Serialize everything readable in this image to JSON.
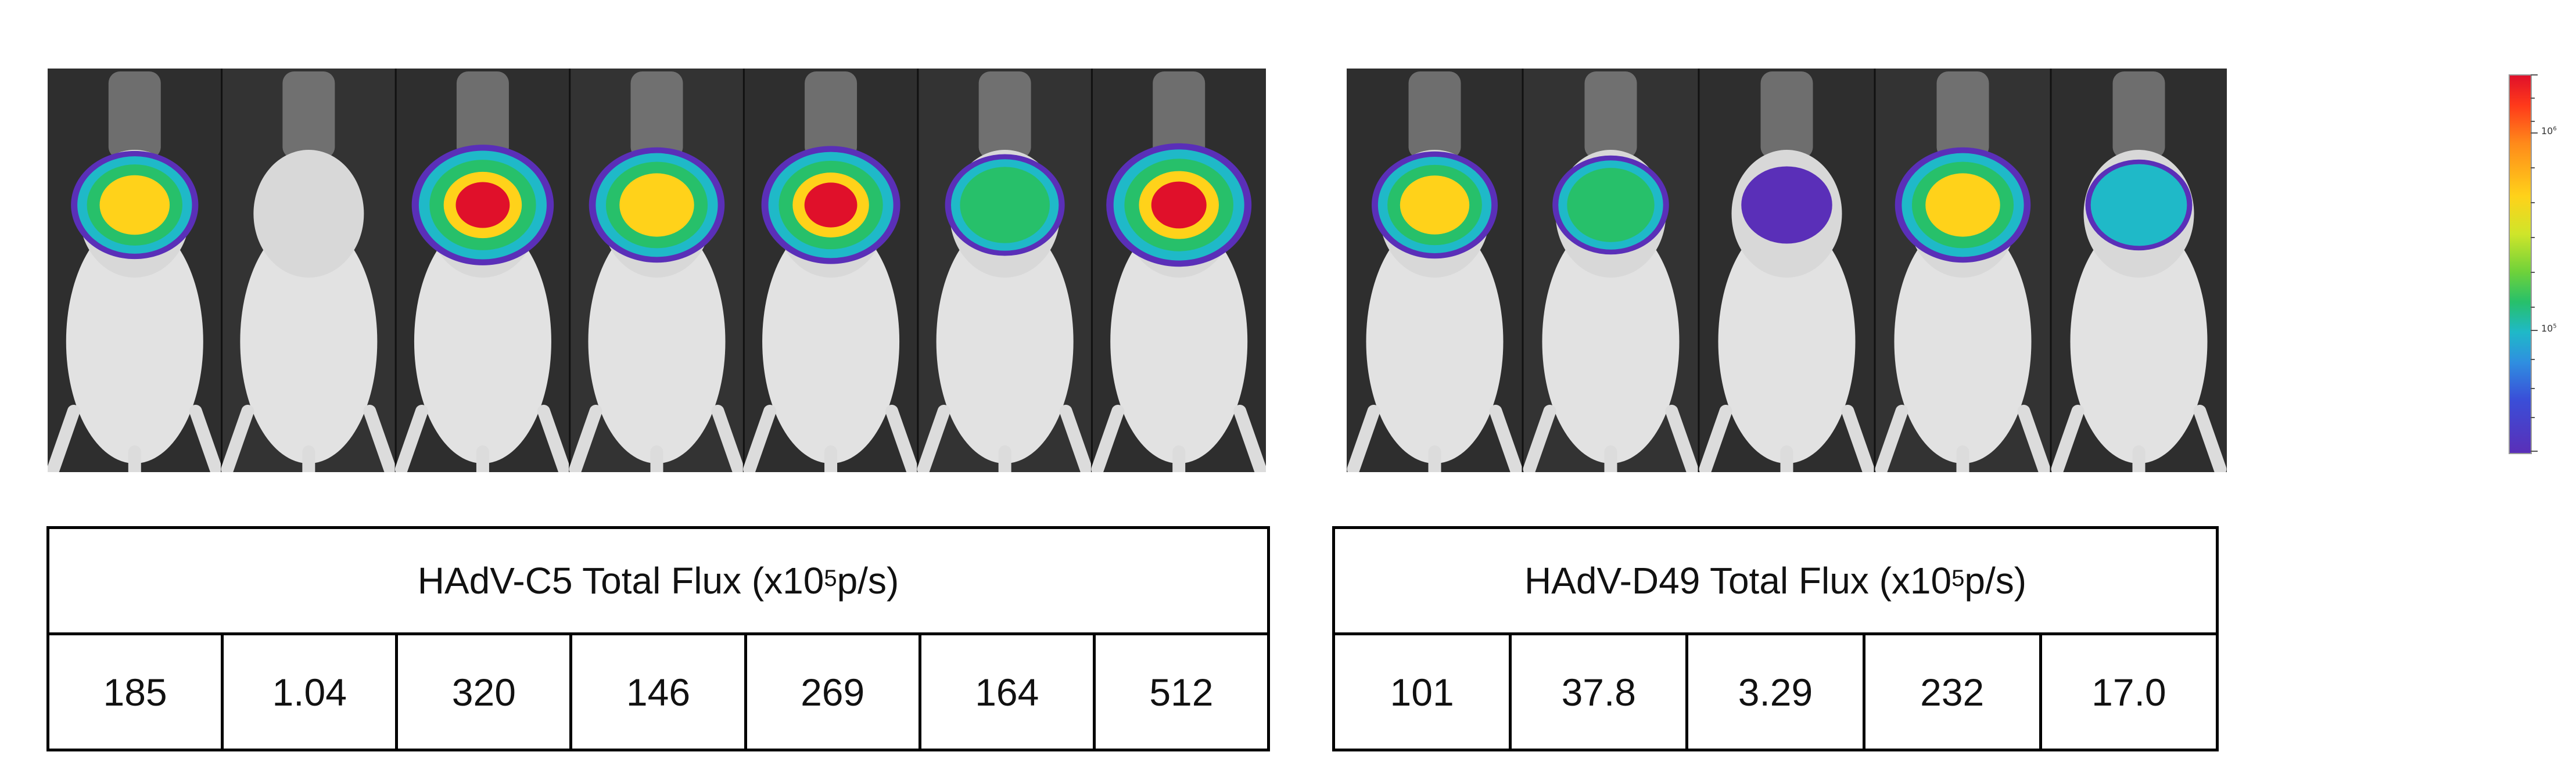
{
  "panels": [
    {
      "id": "c5",
      "title_prefix": "HAdV-C5 Total Flux (x10",
      "title_exp": "5",
      "title_suffix": " p/s)",
      "values": [
        "185",
        "1.04",
        "320",
        "146",
        "269",
        "164",
        "512"
      ],
      "signal_levels": [
        0.72,
        0.0,
        0.95,
        0.85,
        0.9,
        0.6,
        1.0
      ]
    },
    {
      "id": "d49",
      "title_prefix": "HAdV-D49 Total Flux (x10",
      "title_exp": "5",
      "title_suffix": " p/s)",
      "values": [
        "101",
        "37.8",
        "3.29",
        "232",
        "17.0"
      ],
      "signal_levels": [
        0.7,
        0.55,
        0.15,
        0.85,
        0.4
      ]
    }
  ],
  "colorbar": {
    "major_labels": [
      {
        "base": "10",
        "exp": "6"
      },
      {
        "base": "10",
        "exp": "5"
      }
    ],
    "colors": [
      "#e0102a",
      "#ffd21a",
      "#27c06a",
      "#1fb9c8",
      "#5a2fb8"
    ]
  }
}
